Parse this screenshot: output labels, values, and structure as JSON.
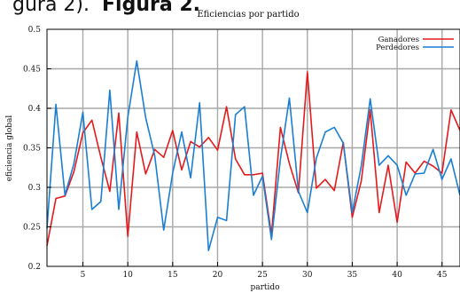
{
  "caption": {
    "prefix": "gura 2).",
    "label": "Figura 2."
  },
  "chart_data": {
    "type": "line",
    "title": "Eficiencias por partido",
    "xlabel": "partido",
    "ylabel": "eficiencia global",
    "xlim": [
      1,
      47
    ],
    "ylim": [
      0.2,
      0.5
    ],
    "xticks": [
      5,
      10,
      15,
      20,
      25,
      30,
      35,
      40,
      45
    ],
    "yticks": [
      0.2,
      0.25,
      0.3,
      0.35,
      0.4,
      0.45,
      0.5
    ],
    "xtick_labels": [
      "5",
      "10",
      "15",
      "20",
      "25",
      "30",
      "35",
      "40",
      "45"
    ],
    "ytick_labels": [
      "0.2",
      "0.25",
      "0.3",
      "0.35",
      "0.4",
      "0.45",
      "0.5"
    ],
    "grid": true,
    "legend_position": "top-right",
    "series": [
      {
        "name": "Ganadores",
        "color": "#e41a1c",
        "x": [
          1,
          2,
          3,
          4,
          5,
          6,
          7,
          8,
          9,
          10,
          11,
          12,
          13,
          14,
          15,
          16,
          17,
          18,
          19,
          20,
          21,
          22,
          23,
          24,
          25,
          26,
          27,
          28,
          29,
          30,
          31,
          32,
          33,
          34,
          35,
          36,
          37,
          38,
          39,
          40,
          41,
          42,
          43,
          44,
          45,
          46,
          47
        ],
        "values": [
          0.226,
          0.286,
          0.289,
          0.32,
          0.369,
          0.385,
          0.338,
          0.295,
          0.394,
          0.238,
          0.37,
          0.317,
          0.348,
          0.338,
          0.372,
          0.322,
          0.358,
          0.351,
          0.363,
          0.347,
          0.402,
          0.336,
          0.316,
          0.316,
          0.318,
          0.24,
          0.376,
          0.33,
          0.293,
          0.446,
          0.299,
          0.31,
          0.296,
          0.357,
          0.262,
          0.308,
          0.398,
          0.268,
          0.328,
          0.256,
          0.332,
          0.318,
          0.333,
          0.327,
          0.318,
          0.398,
          0.372
        ]
      },
      {
        "name": "Perdedores",
        "color": "#1a7fd4",
        "x": [
          1,
          2,
          3,
          4,
          5,
          6,
          7,
          8,
          9,
          10,
          11,
          12,
          13,
          14,
          15,
          16,
          17,
          18,
          19,
          20,
          21,
          22,
          23,
          24,
          25,
          26,
          27,
          28,
          29,
          30,
          31,
          32,
          33,
          34,
          35,
          36,
          37,
          38,
          39,
          40,
          41,
          42,
          43,
          44,
          45,
          46,
          47
        ],
        "values": [
          0.248,
          0.405,
          0.29,
          0.33,
          0.395,
          0.272,
          0.282,
          0.423,
          0.272,
          0.389,
          0.46,
          0.388,
          0.34,
          0.246,
          0.318,
          0.37,
          0.312,
          0.407,
          0.22,
          0.262,
          0.258,
          0.392,
          0.402,
          0.29,
          0.314,
          0.234,
          0.336,
          0.413,
          0.295,
          0.268,
          0.337,
          0.37,
          0.376,
          0.356,
          0.268,
          0.327,
          0.412,
          0.328,
          0.34,
          0.328,
          0.29,
          0.317,
          0.318,
          0.348,
          0.31,
          0.336,
          0.29
        ]
      }
    ]
  }
}
